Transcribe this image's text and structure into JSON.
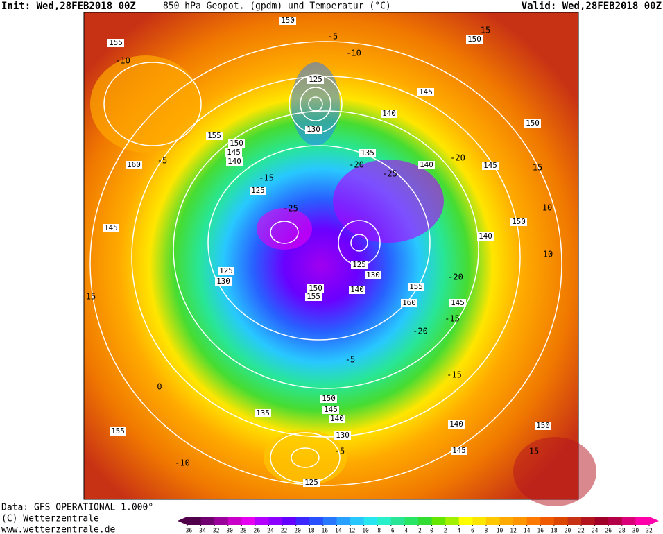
{
  "header": {
    "init": "Init: Wed,28FEB2018 00Z",
    "title": "850 hPa Geopot. (gpdm) und Temperatur (°C)",
    "valid": "Valid: Wed,28FEB2018 00Z"
  },
  "footer": {
    "data": "Data: GFS OPERATIONAL 1.000°",
    "copyright": "(C) Wetterzentrale",
    "url": "www.wetterzentrale.de"
  },
  "geopotential_labels": [
    150,
    155,
    150,
    125,
    145,
    140,
    130,
    150,
    155,
    150,
    145,
    140,
    135,
    140,
    145,
    160,
    125,
    150,
    145,
    140,
    125,
    130,
    125,
    130,
    140,
    150,
    155,
    155,
    160,
    145,
    150,
    145,
    140,
    135,
    130,
    140,
    150,
    155,
    145,
    125
  ],
  "temperature_labels": [
    -5,
    -10,
    15,
    -10,
    -5,
    -15,
    -20,
    -25,
    -20,
    15,
    -25,
    10,
    -20,
    -15,
    -20,
    -5,
    -15,
    0,
    15,
    -10,
    -5,
    15,
    10
  ],
  "colorbar": {
    "ticks": [
      -36,
      -34,
      -32,
      -30,
      -28,
      -26,
      -24,
      -22,
      -20,
      -18,
      -16,
      -14,
      -12,
      -10,
      -8,
      -6,
      -4,
      -2,
      0,
      2,
      4,
      6,
      8,
      10,
      12,
      14,
      16,
      18,
      20,
      22,
      24,
      26,
      28,
      30,
      32
    ],
    "colors": [
      "#50004a",
      "#700070",
      "#9a009a",
      "#c800c8",
      "#e600f0",
      "#b400ff",
      "#8c00ff",
      "#6400ff",
      "#3c28ff",
      "#2850ff",
      "#2878ff",
      "#28a0ff",
      "#28c8ff",
      "#28e6f0",
      "#28f0c8",
      "#28e696",
      "#28e664",
      "#32dc32",
      "#64e600",
      "#a0f000",
      "#ffff00",
      "#ffe600",
      "#ffc800",
      "#ffaa00",
      "#ff9600",
      "#ff7800",
      "#f05a00",
      "#dc4600",
      "#c83214",
      "#b4141e",
      "#a00028",
      "#b40046",
      "#dc0078",
      "#ff00aa"
    ]
  }
}
